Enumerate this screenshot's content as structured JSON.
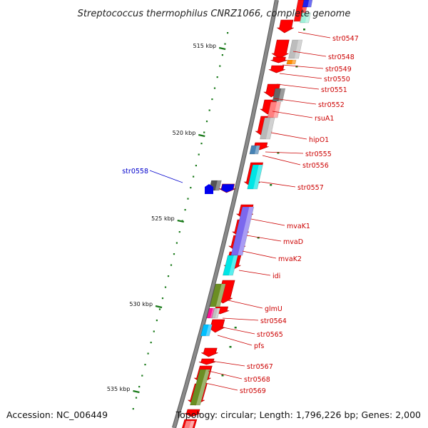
{
  "title": "Streptococcus thermophilus CNRZ1066, complete genome",
  "accession": "Accession: NC_006449",
  "topology": "Topology: circular; Length: 1,796,226 bp; Genes: 2,000",
  "colors": {
    "backbone": "#8a8a8a",
    "backbone_edge": "#5a5a5a",
    "gene_arrow": "#ff0000",
    "forward_label": "#cc0000",
    "reverse_label": "#0000cc",
    "tick": "#1a7a1a"
  },
  "kbp_markers": [
    {
      "label": "515 kbp"
    },
    {
      "label": "520 kbp"
    },
    {
      "label": "525 kbp"
    },
    {
      "label": "530 kbp"
    },
    {
      "label": "535 kbp"
    }
  ],
  "gene_labels": [
    {
      "name": "str0547",
      "strand": "forward"
    },
    {
      "name": "str0548",
      "strand": "forward"
    },
    {
      "name": "str0549",
      "strand": "forward"
    },
    {
      "name": "str0550",
      "strand": "forward"
    },
    {
      "name": "str0551",
      "strand": "forward"
    },
    {
      "name": "str0552",
      "strand": "forward"
    },
    {
      "name": "rsuA1",
      "strand": "forward"
    },
    {
      "name": "hipO1",
      "strand": "forward"
    },
    {
      "name": "str0555",
      "strand": "forward"
    },
    {
      "name": "str0556",
      "strand": "forward"
    },
    {
      "name": "str0557",
      "strand": "forward"
    },
    {
      "name": "mvaK1",
      "strand": "forward"
    },
    {
      "name": "mvaD",
      "strand": "forward"
    },
    {
      "name": "mvaK2",
      "strand": "forward"
    },
    {
      "name": "idi",
      "strand": "forward"
    },
    {
      "name": "glmU",
      "strand": "forward"
    },
    {
      "name": "str0564",
      "strand": "forward"
    },
    {
      "name": "str0565",
      "strand": "forward"
    },
    {
      "name": "pfs",
      "strand": "forward"
    },
    {
      "name": "str0567",
      "strand": "forward"
    },
    {
      "name": "str0568",
      "strand": "forward"
    },
    {
      "name": "str0569",
      "strand": "forward"
    },
    {
      "name": "str0558",
      "strand": "reverse"
    }
  ]
}
